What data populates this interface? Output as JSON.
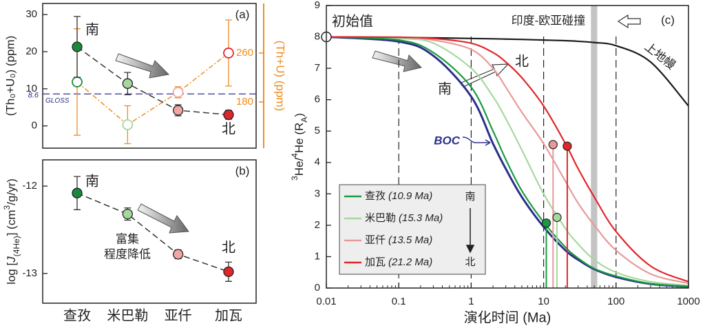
{
  "chart_data": [
    {
      "type": "errorbar-dual",
      "panel_label": "(a)",
      "ylabel": "(Th₀+U₀) (ppm)",
      "y2label": "(Th+U) (ppm)",
      "ylim": [
        -6,
        33
      ],
      "yticks": [
        0,
        10,
        20,
        30
      ],
      "y2lim": [
        104.5,
        341
      ],
      "y2ticks": [
        180,
        260
      ],
      "y2color": "#f08c1e",
      "point_colors": [
        "#1a8a3a",
        "#a6d89e",
        "#f2a5a5",
        "#e0262a"
      ],
      "series": [
        {
          "values": [
            21.3,
            11.4,
            4.2,
            3.0
          ],
          "errors": [
            8.2,
            3.0,
            1.5,
            1.2
          ],
          "color": "#333333",
          "filled": true
        },
        {
          "axis": "y2",
          "values": [
            212.7,
            142.8,
            195.8,
            260
          ],
          "errors": [
            87,
            31,
            9,
            54
          ],
          "color": "#f08c1e",
          "filled": false
        }
      ],
      "reference_line": {
        "value": 8.6,
        "label": "GLOSS",
        "color": "#2b2f8a"
      },
      "south_label": "南",
      "north_label": "北"
    },
    {
      "type": "errorbar",
      "panel_label": "(b)",
      "ylabel_parts": [
        {
          "text": "log ["
        },
        {
          "text": "J",
          "style": "italic"
        },
        {
          "text": "(4He)",
          "style": "sub"
        },
        {
          "text": "] (cm"
        },
        {
          "text": "3",
          "style": "sup"
        },
        {
          "text": "/g/yr)"
        }
      ],
      "categories": [
        "查孜",
        "米巴勒",
        "亚仟",
        "加瓦"
      ],
      "ylim": [
        -13.34,
        -11.7
      ],
      "yticks": [
        -12,
        -13
      ],
      "point_colors": [
        "#1a8a3a",
        "#a6d89e",
        "#f2a5a5",
        "#e0262a"
      ],
      "series": [
        {
          "values": [
            -12.08,
            -12.32,
            -12.78,
            -12.98
          ],
          "errors": [
            0.19,
            0.07,
            0.05,
            0.11
          ],
          "color": "#333333",
          "filled": true
        }
      ],
      "south_label": "南",
      "north_label": "北",
      "note_lines": [
        "富集",
        "程度降低"
      ]
    },
    {
      "type": "line",
      "panel_label": "(c)",
      "xscale": "log",
      "xlabel": "演化时间 (Ma)",
      "ylabel_parts": [
        {
          "text": "3",
          "style": "sup"
        },
        {
          "text": "He/"
        },
        {
          "text": "4",
          "style": "sup"
        },
        {
          "text": "He (R"
        },
        {
          "text": "A",
          "style": "sub"
        },
        {
          "text": ")"
        }
      ],
      "xlim": [
        0.01,
        1000
      ],
      "xticks": [
        0.01,
        0.1,
        1,
        10,
        100,
        1000
      ],
      "ylim": [
        0,
        9
      ],
      "yticks": [
        0,
        1,
        2,
        3,
        4,
        5,
        6,
        7,
        8,
        9
      ],
      "dashed_lines": [
        0.1,
        1,
        10,
        100
      ],
      "collision": {
        "range": [
          45,
          55
        ],
        "label": "印度-欧亚碰撞"
      },
      "initial": {
        "x": 0.01,
        "y": 8,
        "label": "初始值"
      },
      "x": [
        0.01,
        0.1,
        0.3,
        1,
        2,
        3,
        5,
        10,
        20,
        30,
        50,
        100,
        300,
        1000
      ],
      "series": [
        {
          "name": "上地幔",
          "color": "#1a1a1a",
          "values": [
            8,
            7.98,
            7.97,
            7.95,
            7.94,
            7.93,
            7.92,
            7.9,
            7.88,
            7.86,
            7.82,
            7.72,
            7.2,
            5.8
          ]
        },
        {
          "name": "BOC",
          "color": "#2b2f8a",
          "values": [
            8,
            7.85,
            7.4,
            6.1,
            4.6,
            3.8,
            2.9,
            1.95,
            1.2,
            0.9,
            0.6,
            0.35,
            0.13,
            0.04
          ]
        },
        {
          "name": "查孜",
          "age_label": "(10.9 Ma)",
          "color": "#1a9a40",
          "marker_x": 10.9,
          "marker_y": 2.07,
          "values": [
            8,
            7.9,
            7.5,
            6.4,
            5.0,
            4.1,
            3.1,
            2.1,
            1.3,
            0.95,
            0.62,
            0.38,
            0.14,
            0.05
          ]
        },
        {
          "name": "米巴勒",
          "age_label": "(15.3 Ma)",
          "color": "#a6d89e",
          "marker_x": 15.3,
          "marker_y": 2.25,
          "values": [
            8,
            7.95,
            7.8,
            7.0,
            6.1,
            5.4,
            4.4,
            3.0,
            1.9,
            1.4,
            0.9,
            0.5,
            0.2,
            0.08
          ]
        },
        {
          "name": "亚仟",
          "age_label": "(13.5 Ma)",
          "color": "#e79a9a",
          "marker_x": 13.5,
          "marker_y": 4.57,
          "values": [
            8,
            7.98,
            7.9,
            7.6,
            7.0,
            6.4,
            5.6,
            4.6,
            3.4,
            2.7,
            2.0,
            1.2,
            0.45,
            0.15
          ]
        },
        {
          "name": "加瓦",
          "age_label": "(21.2 Ma)",
          "color": "#e0262a",
          "marker_x": 21.2,
          "marker_y": 4.52,
          "values": [
            8,
            7.99,
            7.95,
            7.8,
            7.5,
            7.2,
            6.7,
            5.8,
            4.6,
            3.8,
            2.9,
            1.8,
            0.7,
            0.2
          ]
        }
      ],
      "south_label": "南",
      "north_label": "北"
    }
  ]
}
